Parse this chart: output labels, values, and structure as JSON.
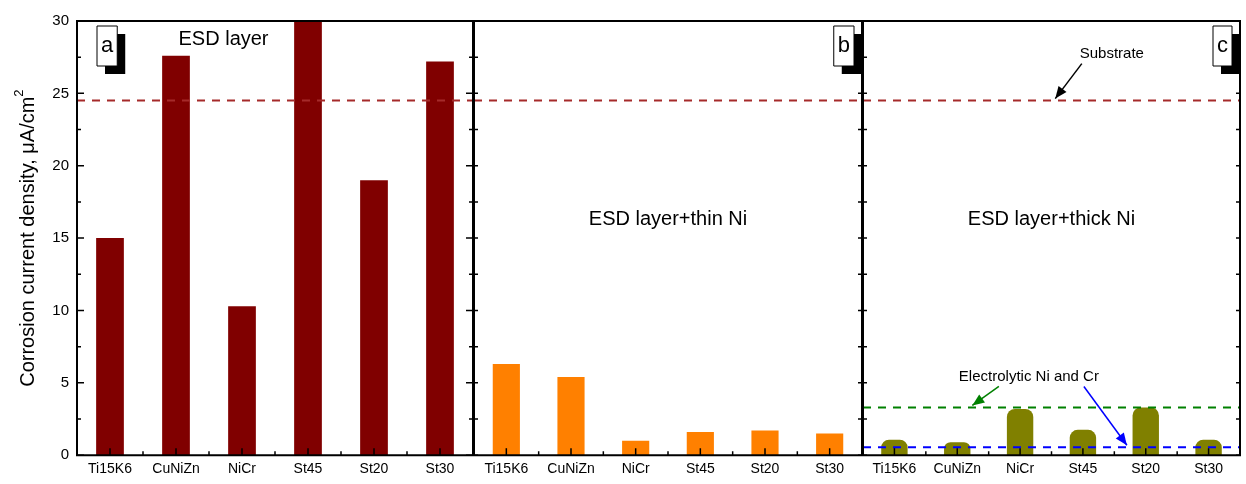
{
  "chart_data": [
    {
      "type": "bar",
      "ylabel": "Corrosion current density, μA/cm$^{2}$",
      "categories": [
        "Ti15K6",
        "CuNiZn",
        "NiCr",
        "St45",
        "St20",
        "St30"
      ],
      "series": [
        {
          "color": "#800000",
          "values": [
            15,
            27.6,
            10.3,
            30,
            19,
            27.2
          ]
        }
      ],
      "ylim": [
        0,
        30
      ],
      "yticks": [
        0,
        {
          "value": 2.5,
          "label": null
        },
        5,
        {
          "value": 7.5,
          "label": null
        },
        10,
        {
          "value": 12.5,
          "label": null
        },
        15,
        {
          "value": 17.5,
          "label": null
        },
        20,
        {
          "value": 22.5,
          "label": null
        },
        25,
        {
          "value": 27.5,
          "label": null
        },
        30
      ],
      "ref_lines": [
        {
          "axis": "y",
          "value": 24.5,
          "label": null,
          "color": "#a52a2a",
          "line_style": "dashed"
        }
      ],
      "annotations": [
        "a",
        "ESD layer"
      ],
      "legend": false,
      "grid": false
    },
    {
      "type": "bar",
      "categories": [
        "Ti15K6",
        "CuNiZn",
        "NiCr",
        "St45",
        "St20",
        "St30"
      ],
      "series": [
        {
          "color": "#ff8000",
          "values": [
            6.3,
            5.4,
            1.0,
            1.6,
            1.7,
            1.5
          ]
        }
      ],
      "ylim": [
        0,
        30
      ],
      "yticks": [
        {
          "value": 0,
          "label": null
        },
        {
          "value": 2.5,
          "label": null
        },
        {
          "value": 5,
          "label": null
        },
        {
          "value": 7.5,
          "label": null
        },
        {
          "value": 10,
          "label": null
        },
        {
          "value": 12.5,
          "label": null
        },
        {
          "value": 15,
          "label": null
        },
        {
          "value": 17.5,
          "label": null
        },
        {
          "value": 20,
          "label": null
        },
        {
          "value": 22.5,
          "label": null
        },
        {
          "value": 25,
          "label": null
        },
        {
          "value": 27.5,
          "label": null
        },
        {
          "value": 30,
          "label": null
        }
      ],
      "tick_labels": "x",
      "ref_lines": [
        {
          "axis": "y",
          "value": 24.5,
          "label": null,
          "color": "#a52a2a",
          "line_style": "dashed"
        }
      ],
      "annotations": [
        "b",
        "ESD layer+thin Ni"
      ],
      "legend": false,
      "grid": false
    },
    {
      "type": "bar",
      "categories": [
        "Ti15K6",
        "CuNiZn",
        "NiCr",
        "St45",
        "St20",
        "St30"
      ],
      "series": [
        {
          "color": "#808000",
          "values": [
            1.07,
            0.9,
            3.2,
            1.75,
            3.3,
            1.07
          ]
        }
      ],
      "ylim": [
        0,
        30
      ],
      "yticks": [
        {
          "value": 0,
          "label": null
        },
        {
          "value": 2.5,
          "label": null
        },
        {
          "value": 5,
          "label": null
        },
        {
          "value": 7.5,
          "label": null
        },
        {
          "value": 10,
          "label": null
        },
        {
          "value": 12.5,
          "label": null
        },
        {
          "value": 15,
          "label": null
        },
        {
          "value": 17.5,
          "label": null
        },
        {
          "value": 20,
          "label": null
        },
        {
          "value": 22.5,
          "label": null
        },
        {
          "value": 25,
          "label": null
        },
        {
          "value": 27.5,
          "label": null
        },
        {
          "value": 30,
          "label": null
        }
      ],
      "tick_labels": "x",
      "ref_lines": [
        {
          "axis": "y",
          "value": 24.5,
          "label": "Substrate",
          "color": "#a52a2a",
          "line_style": "dashed"
        },
        {
          "axis": "y",
          "value": 3.3,
          "label": "Electrolytic Ni and Cr",
          "color": "#008000",
          "line_style": "dashed"
        },
        {
          "axis": "y",
          "value": 0.55,
          "label": null,
          "color": "#0000ff",
          "line_style": "dashed"
        }
      ],
      "annotations": [
        "c",
        "ESD layer+thick Ni"
      ],
      "legend": false,
      "grid": false
    }
  ]
}
